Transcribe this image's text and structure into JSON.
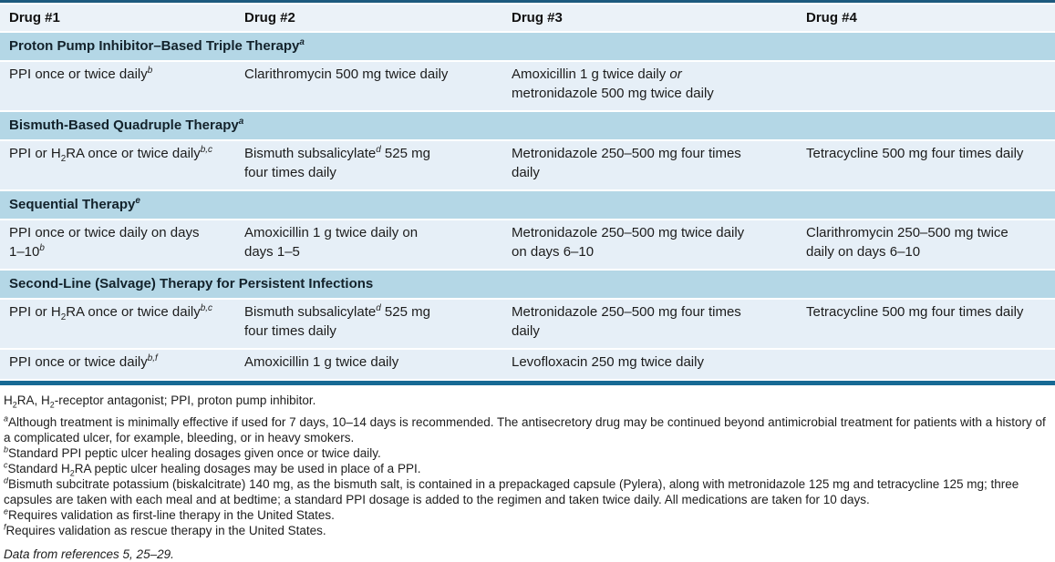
{
  "table": {
    "columns": [
      "Drug #1",
      "Drug #2",
      "Drug #3",
      "Drug #4"
    ],
    "sections": [
      {
        "title": "Proton Pump Inhibitor–Based Triple Therapy^a^",
        "rows": [
          [
            "PPI once or twice daily^b^",
            "Clarithromycin 500 mg twice daily",
            "Amoxicillin 1 g twice daily *or*\nmetronidazole 500 mg twice daily",
            ""
          ]
        ]
      },
      {
        "title": "Bismuth-Based Quadruple Therapy^a^",
        "rows": [
          [
            "PPI or H~2~RA once or twice daily^b,c^",
            "Bismuth subsalicylate^d^ 525 mg\nfour times daily",
            "Metronidazole 250–500 mg four times\ndaily",
            "Tetracycline 500 mg four times daily"
          ]
        ]
      },
      {
        "title": "Sequential Therapy^e^",
        "rows": [
          [
            "PPI once or twice daily on days\n1–10^b^",
            "Amoxicillin 1 g twice daily on\ndays 1–5",
            "Metronidazole 250–500 mg twice daily\non days 6–10",
            "Clarithromycin 250–500 mg twice\ndaily on days 6–10"
          ]
        ]
      },
      {
        "title": "Second-Line (Salvage) Therapy for Persistent Infections",
        "rows": [
          [
            "PPI or H~2~RA once or twice daily^b,c^",
            "Bismuth subsalicylate^d^ 525 mg\nfour times daily",
            "Metronidazole 250–500 mg four times\ndaily",
            "Tetracycline 500 mg four times daily"
          ],
          [
            "PPI once or twice daily^b,f^",
            "Amoxicillin 1 g twice daily",
            "Levofloxacin 250 mg twice daily",
            ""
          ]
        ]
      }
    ]
  },
  "footnotes": {
    "abbrev": "H~2~RA, H~2~-receptor antagonist; PPI, proton pump inhibitor.",
    "notes": [
      "^a^Although treatment is minimally effective if used for 7 days, 10–14 days is recommended. The antisecretory drug may be continued beyond antimicrobial treatment for patients with a history of a complicated ulcer, for example, bleeding, or in heavy smokers.",
      "^b^Standard PPI peptic ulcer healing dosages given once or twice daily.",
      "^c^Standard H~2~RA peptic ulcer healing dosages may be used in place of a PPI.",
      "^d^Bismuth subcitrate potassium (biskalcitrate) 140 mg, as the bismuth salt, is contained in a prepackaged capsule (Pylera), along with metronidazole 125 mg and tetracycline 125 mg; three capsules are taken with each meal and at bedtime; a standard PPI dosage is added to the regimen and taken twice daily. All medications are taken for 10 days.",
      "^e^Requires validation as first-line therapy in the United States.",
      "^f^Requires validation as rescue therapy in the United States."
    ],
    "source": "Data from references 5, 25–29."
  },
  "colors": {
    "section_band": "#b4d7e6",
    "row_bg": "#e6eff7",
    "header_bg": "#ebf2f8",
    "rule": "#176a94"
  }
}
